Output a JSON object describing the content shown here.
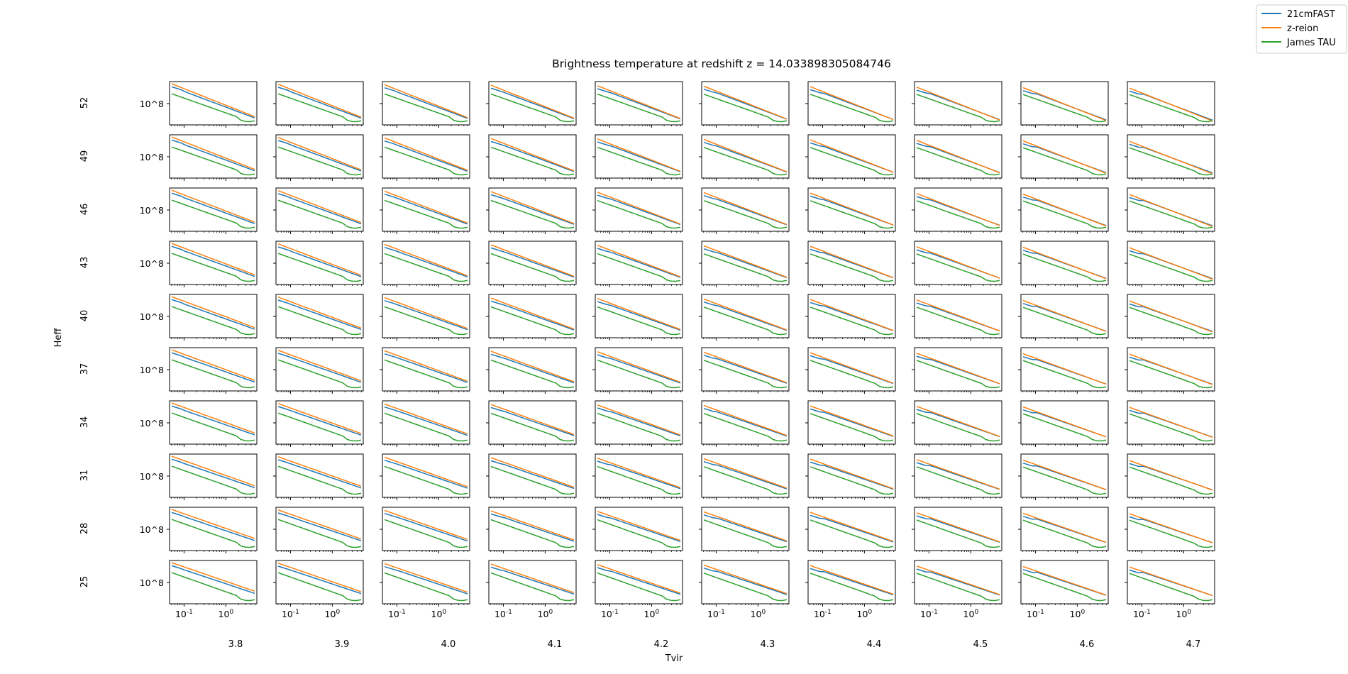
{
  "chart_data": {
    "type": "line",
    "title": "Brightness temperature at redshift z = 14.033898305084746",
    "xlabel": "Tvir",
    "ylabel": "Heff",
    "column_values": [
      "3.8",
      "3.9",
      "4.0",
      "4.1",
      "4.2",
      "4.3",
      "4.4",
      "4.5",
      "4.6",
      "4.7"
    ],
    "row_values": [
      "52",
      "49",
      "46",
      "43",
      "40",
      "37",
      "34",
      "31",
      "28",
      "25"
    ],
    "x_scale": "log",
    "y_scale": "log",
    "x_tick_labels": [
      "10^-1",
      "10^0"
    ],
    "y_tick_label": "10^8",
    "x_range": [
      0.045,
      5.5
    ],
    "legend_position": "top-right",
    "series": [
      {
        "name": "21cmFAST",
        "color": "#1f77b4"
      },
      {
        "name": "z-reion",
        "color": "#ff7f0e"
      },
      {
        "name": "James TAU",
        "color": "#2ca02c"
      }
    ],
    "grid": false
  }
}
